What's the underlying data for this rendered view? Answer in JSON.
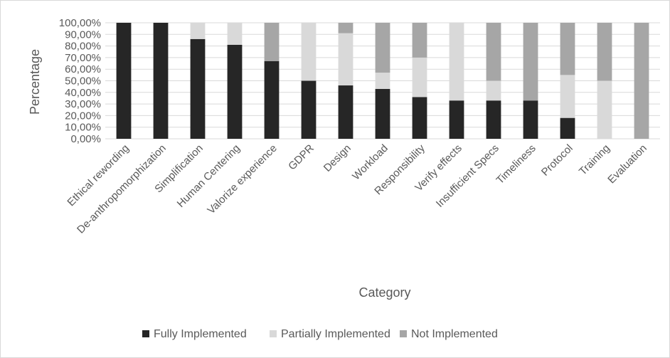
{
  "chart_data": {
    "type": "bar",
    "stacked": true,
    "percent_stacked": true,
    "title": "",
    "xlabel": "Category",
    "ylabel": "Percentage",
    "ylim": [
      0,
      100
    ],
    "y_ticks": [
      "0,00%",
      "10,00%",
      "20,00%",
      "30,00%",
      "40,00%",
      "50,00%",
      "60,00%",
      "70,00%",
      "80,00%",
      "90,00%",
      "100,00%"
    ],
    "grid": true,
    "legend_position": "bottom",
    "categories": [
      "Ethical rewording",
      "De-anthropomorphization",
      "Simplification",
      "Human Centering",
      "Valorize experience",
      "GDPR",
      "Design",
      "Workload",
      "Responsibility",
      "Verify effects",
      "Insufficient Specs",
      "Timeliness",
      "Protocol",
      "Training",
      "Evaluation"
    ],
    "series": [
      {
        "name": "Fully Implemented",
        "color": "#262626",
        "values": [
          100,
          100,
          86,
          81,
          67,
          50,
          46,
          43,
          36,
          33,
          33,
          33,
          18,
          0,
          0
        ]
      },
      {
        "name": "Partially Implemented",
        "color": "#d9d9d9",
        "values": [
          0,
          0,
          14,
          19,
          0,
          50,
          45,
          14,
          34,
          67,
          17,
          0,
          37,
          50,
          0
        ]
      },
      {
        "name": "Not Implemented",
        "color": "#a6a6a6",
        "values": [
          0,
          0,
          0,
          0,
          33,
          0,
          9,
          43,
          30,
          0,
          50,
          67,
          45,
          50,
          100
        ]
      }
    ]
  }
}
